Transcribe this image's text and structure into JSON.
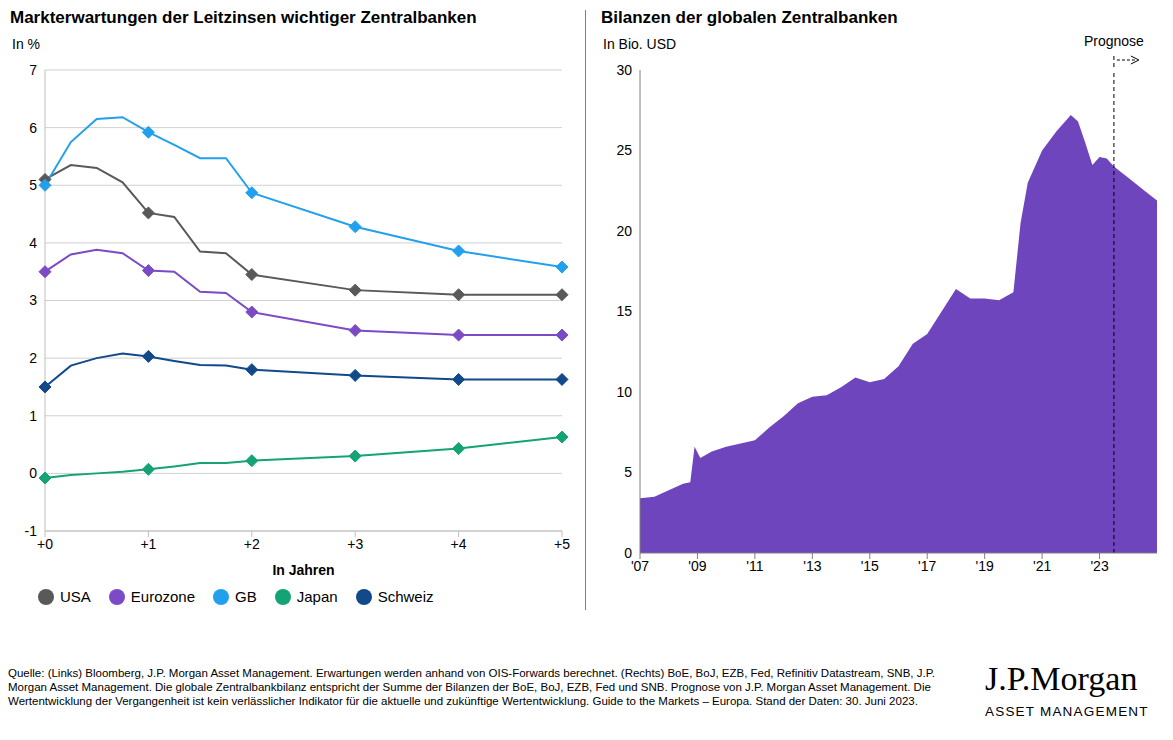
{
  "chart_data": [
    {
      "type": "line",
      "title": "Markterwartungen der Leitzinsen wichtiger Zentralbanken",
      "subtitle": "In %",
      "x_label": "In Jahren",
      "x": [
        0,
        0.25,
        0.5,
        0.75,
        1,
        1.25,
        1.5,
        1.75,
        2,
        3,
        4,
        5
      ],
      "series": [
        {
          "name": "USA",
          "color": "#595959",
          "values": [
            5.1,
            5.35,
            5.3,
            5.05,
            4.52,
            4.45,
            3.85,
            3.82,
            3.45,
            3.18,
            3.1,
            3.1
          ]
        },
        {
          "name": "Eurozone",
          "color": "#7b4bc6",
          "values": [
            3.5,
            3.8,
            3.88,
            3.82,
            3.52,
            3.5,
            3.15,
            3.13,
            2.8,
            2.48,
            2.4,
            2.4
          ]
        },
        {
          "name": "GB",
          "color": "#22a0ee",
          "values": [
            5.0,
            5.75,
            6.15,
            6.18,
            5.92,
            5.7,
            5.47,
            5.47,
            4.87,
            4.28,
            3.86,
            3.58
          ]
        },
        {
          "name": "Japan",
          "color": "#14a374",
          "values": [
            -0.08,
            -0.03,
            0.0,
            0.03,
            0.07,
            0.12,
            0.18,
            0.18,
            0.22,
            0.3,
            0.43,
            0.63
          ]
        },
        {
          "name": "Schweiz",
          "color": "#11498b",
          "values": [
            1.5,
            1.87,
            2.0,
            2.08,
            2.03,
            1.95,
            1.88,
            1.87,
            1.8,
            1.7,
            1.63,
            1.63
          ]
        }
      ],
      "xlim": [
        0,
        5
      ],
      "xticks": [
        {
          "value": 0,
          "label": "+0"
        },
        {
          "value": 1,
          "label": "+1"
        },
        {
          "value": 2,
          "label": "+2"
        },
        {
          "value": 3,
          "label": "+3"
        },
        {
          "value": 4,
          "label": "+4"
        },
        {
          "value": 5,
          "label": "+5"
        }
      ],
      "ylim": [
        -1,
        7
      ],
      "yticks": [
        -1,
        0,
        1,
        2,
        3,
        4,
        5,
        6,
        7
      ],
      "grid": true,
      "marker": "diamond",
      "legend": "bottom"
    },
    {
      "type": "area",
      "title": "Bilanzen der globalen Zentralbanken",
      "subtitle": "In Bio. USD",
      "x": [
        2007.0,
        2007.5,
        2008.0,
        2008.5,
        2008.75,
        2008.9,
        2009.1,
        2009.5,
        2010.0,
        2010.5,
        2011.0,
        2011.5,
        2012.0,
        2012.5,
        2013.0,
        2013.5,
        2014.0,
        2014.5,
        2015.0,
        2015.5,
        2016.0,
        2016.5,
        2017.0,
        2017.5,
        2018.0,
        2018.5,
        2019.0,
        2019.5,
        2020.0,
        2020.25,
        2020.5,
        2021.0,
        2021.5,
        2022.0,
        2022.25,
        2022.5,
        2022.75,
        2023.0,
        2023.25,
        2023.5,
        2024.0,
        2024.5,
        2025.0
      ],
      "values": [
        3.4,
        3.5,
        3.9,
        4.3,
        4.4,
        6.6,
        5.9,
        6.3,
        6.6,
        6.8,
        7.0,
        7.8,
        8.5,
        9.3,
        9.7,
        9.8,
        10.3,
        10.9,
        10.6,
        10.8,
        11.6,
        13.0,
        13.6,
        15.0,
        16.4,
        15.8,
        15.8,
        15.7,
        16.2,
        20.5,
        23.0,
        25.0,
        26.2,
        27.2,
        26.8,
        25.5,
        24.1,
        24.6,
        24.5,
        24.0,
        23.3,
        22.6,
        21.9
      ],
      "color": "#6f45bd",
      "xlim": [
        2007,
        2025
      ],
      "xticks": [
        {
          "value": 2007,
          "label": "'07"
        },
        {
          "value": 2009,
          "label": "'09"
        },
        {
          "value": 2011,
          "label": "'11"
        },
        {
          "value": 2013,
          "label": "'13"
        },
        {
          "value": 2015,
          "label": "'15"
        },
        {
          "value": 2017,
          "label": "'17"
        },
        {
          "value": 2019,
          "label": "'19"
        },
        {
          "value": 2021,
          "label": "'21"
        },
        {
          "value": 2023,
          "label": "'23"
        }
      ],
      "ylim": [
        0,
        30
      ],
      "yticks": [
        0,
        5,
        10,
        15,
        20,
        25,
        30
      ],
      "grid": false,
      "annotations": [
        {
          "x": 2023.5,
          "text": "Prognose",
          "line_style": "dashed"
        }
      ]
    }
  ],
  "footer": "Quelle: (Links) Bloomberg, J.P. Morgan Asset Management. Erwartungen werden anhand von OIS-Forwards berechnet. (Rechts) BoE, BoJ, EZB, Fed, Refinitiv Datastream, SNB, J.P. Morgan Asset Management. Die globale Zentralbankbilanz entspricht der Summe der Bilanzen der BoE, BoJ, EZB, Fed und SNB. Prognose von J.P. Morgan Asset Management. Die Wertentwicklung der Vergangenheit ist kein verlässlicher Indikator für die aktuelle und zukünftige Wertentwicklung. Guide to the Markets – Europa. Stand der Daten: 30. Juni 2023.",
  "logo": {
    "name": "J.P.Morgan",
    "subtitle": "ASSET MANAGEMENT"
  }
}
